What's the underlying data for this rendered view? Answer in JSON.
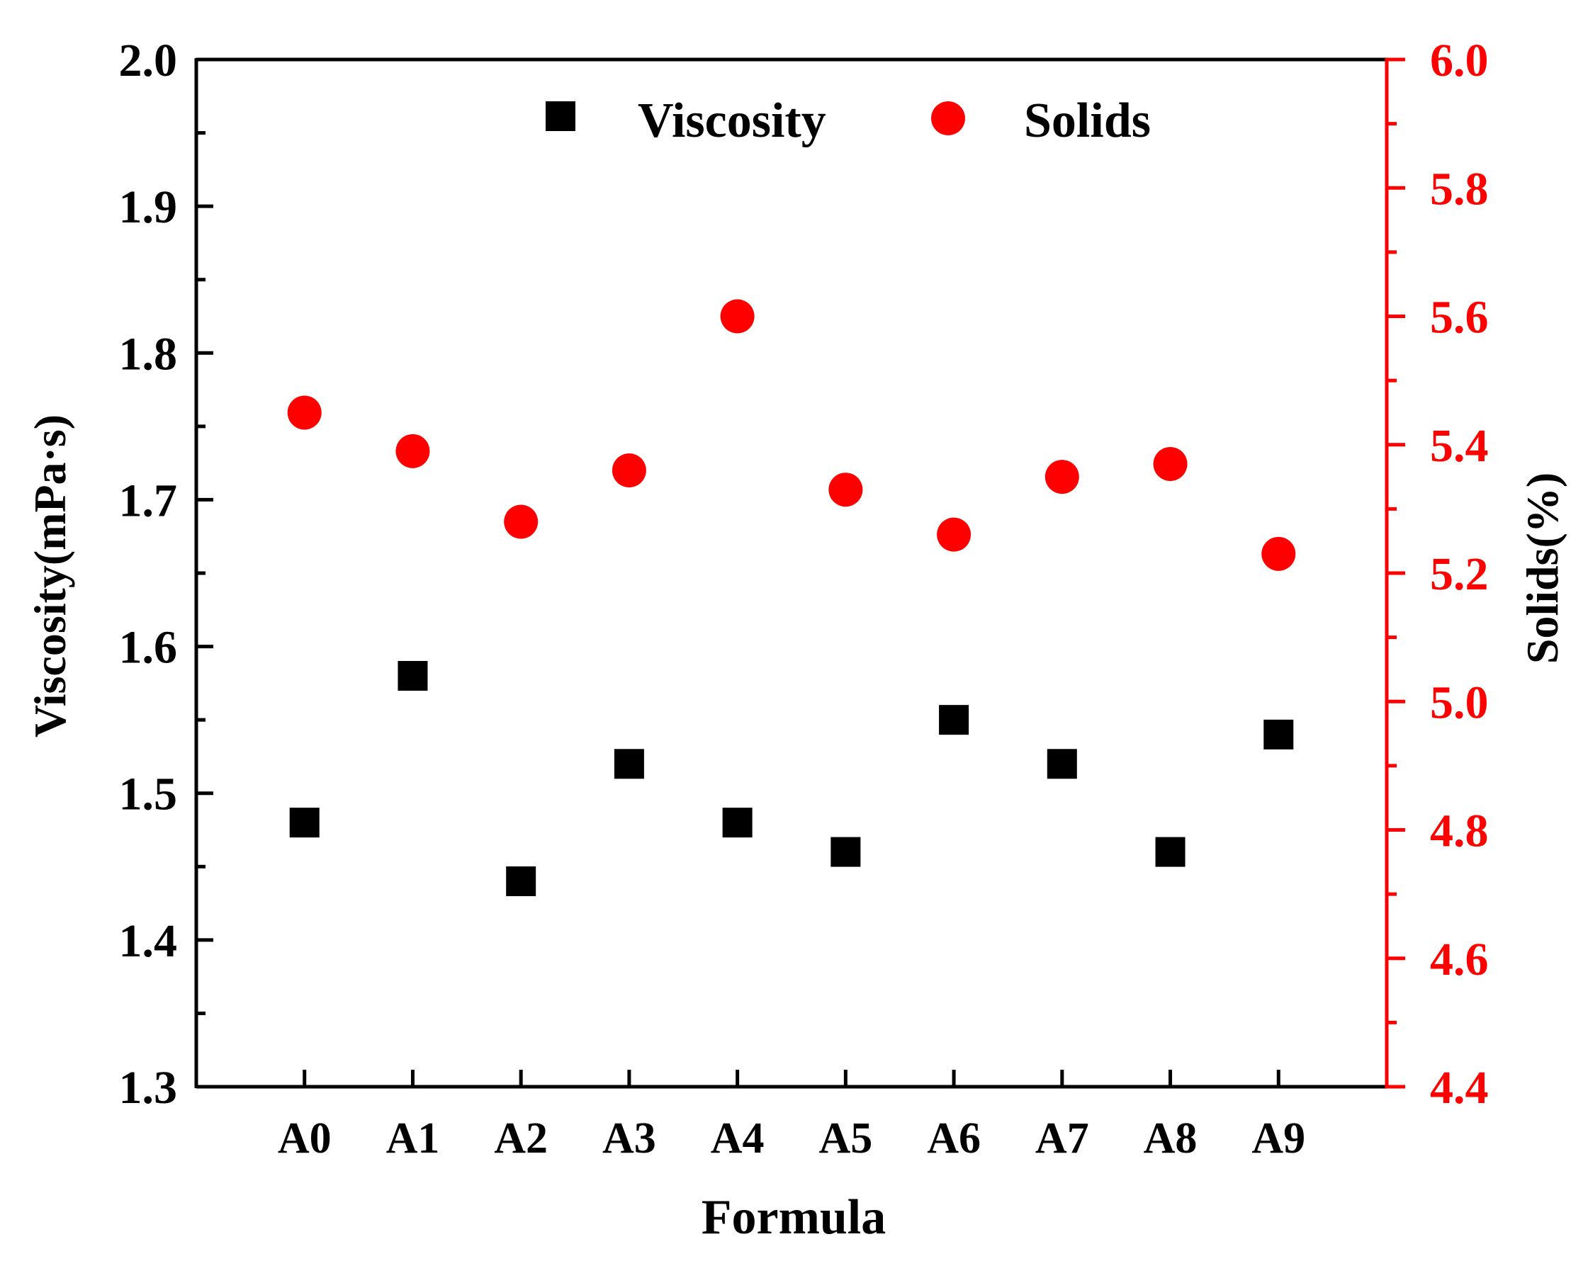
{
  "chart_data": {
    "type": "scatter",
    "categories": [
      "A0",
      "A1",
      "A2",
      "A3",
      "A4",
      "A5",
      "A6",
      "A7",
      "A8",
      "A9"
    ],
    "xlabel": "Formula",
    "series": [
      {
        "name": "Viscosity",
        "axis": "left",
        "marker": "square",
        "color": "#000000",
        "values": [
          1.48,
          1.58,
          1.44,
          1.52,
          1.48,
          1.46,
          1.55,
          1.52,
          1.46,
          1.54
        ]
      },
      {
        "name": "Solids",
        "axis": "right",
        "marker": "circle",
        "color": "#ff0000",
        "values": [
          5.45,
          5.39,
          5.28,
          5.36,
          5.6,
          5.33,
          5.26,
          5.35,
          5.37,
          5.23
        ]
      }
    ],
    "y_left": {
      "label": "Viscosity(mPa·s)",
      "lim": [
        1.3,
        2.0
      ],
      "ticks": [
        "1.3",
        "1.4",
        "1.5",
        "1.6",
        "1.7",
        "1.8",
        "1.9",
        "2.0"
      ],
      "color": "#000000"
    },
    "y_right": {
      "label": "Solids(%)",
      "lim": [
        4.4,
        6.0
      ],
      "ticks": [
        "4.4",
        "4.6",
        "4.8",
        "5.0",
        "5.2",
        "5.4",
        "5.6",
        "5.8",
        "6.0"
      ],
      "color": "#ff0000"
    },
    "legend": {
      "placement": "top-center",
      "entries": [
        "Viscosity",
        "Solids"
      ]
    },
    "grid": false
  }
}
